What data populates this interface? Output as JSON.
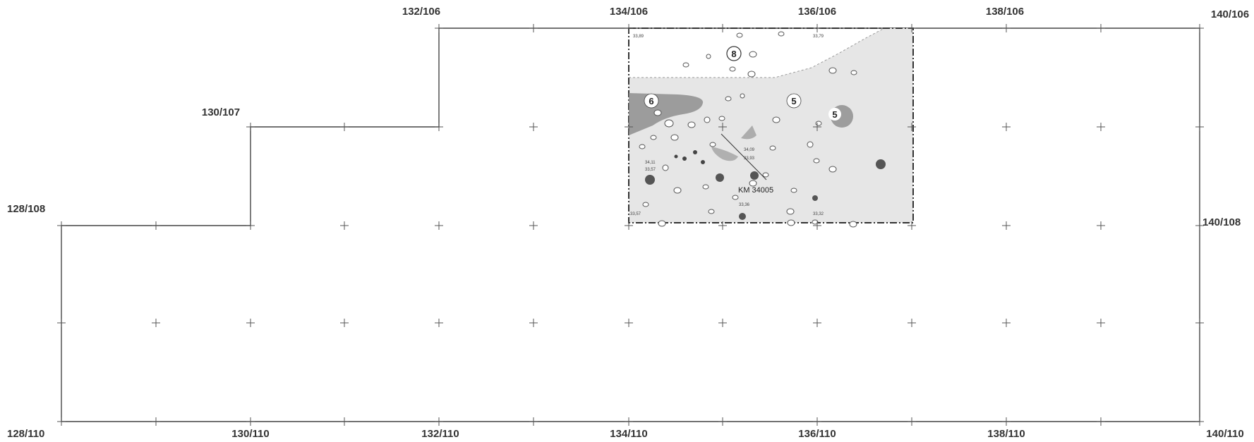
{
  "grid_labels": {
    "top": [
      "132/106",
      "134/106",
      "136/106",
      "138/106",
      "140/106"
    ],
    "step": "130/107",
    "left": "128/108",
    "right": "140/108",
    "bottom": [
      "128/110",
      "130/110",
      "132/110",
      "134/110",
      "136/110",
      "138/110",
      "140/110"
    ]
  },
  "features": [
    "8",
    "6",
    "5",
    "5"
  ],
  "find_label": "KM 34005",
  "elevations": [
    "33,89",
    "33,79",
    "34,11",
    "33,57",
    "34,09",
    "33,93",
    "33,36",
    "33,32",
    "33,57"
  ]
}
